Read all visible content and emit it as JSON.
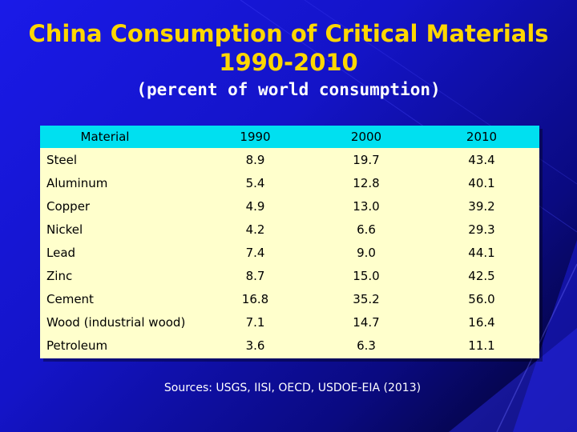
{
  "slide": {
    "title_line1": "China Consumption of Critical Materials",
    "title_line2": "1990-2010",
    "subtitle": "(percent of world consumption)",
    "sources": "Sources:  USGS, IISI, OECD, USDOE-EIA (2013)"
  },
  "table": {
    "headers": [
      "Material",
      "1990",
      "2000",
      "2010"
    ],
    "rows": [
      [
        "Steel",
        "8.9",
        "19.7",
        "43.4"
      ],
      [
        "Aluminum",
        "5.4",
        "12.8",
        "40.1"
      ],
      [
        "Copper",
        "4.9",
        "13.0",
        "39.2"
      ],
      [
        "Nickel",
        "4.2",
        "6.6",
        "29.3"
      ],
      [
        "Lead",
        "7.4",
        "9.0",
        "44.1"
      ],
      [
        "Zinc",
        "8.7",
        "15.0",
        "42.5"
      ],
      [
        "Cement",
        "16.8",
        "35.2",
        "56.0"
      ],
      [
        "Wood (industrial wood)",
        "7.1",
        "14.7",
        "16.4"
      ],
      [
        "Petroleum",
        "3.6",
        "6.3",
        "11.1"
      ]
    ]
  },
  "colors": {
    "title": "#ffd700",
    "header_bg": "#00e0f0",
    "table_bg": "#ffffcc",
    "background": "#1a1ae8"
  }
}
